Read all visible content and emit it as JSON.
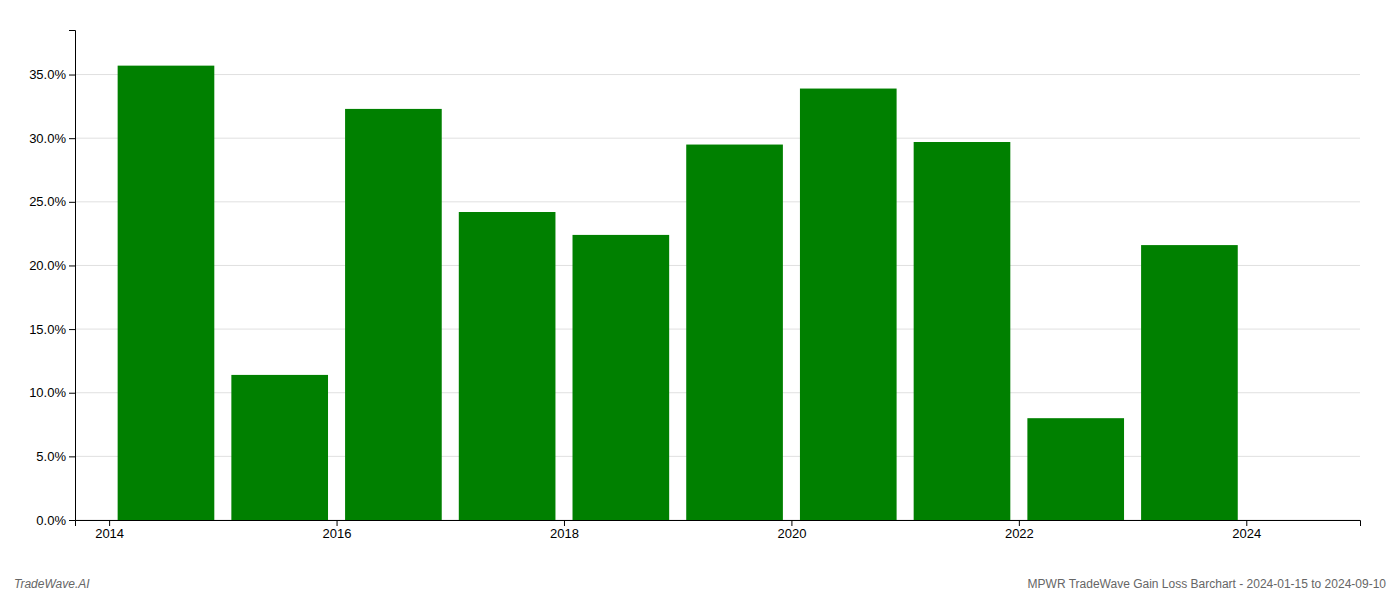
{
  "chart_data": {
    "type": "bar",
    "x": [
      2014,
      2015,
      2016,
      2017,
      2018,
      2019,
      2020,
      2021,
      2022,
      2023
    ],
    "values": [
      0.357,
      0.114,
      0.323,
      0.242,
      0.224,
      0.295,
      0.339,
      0.297,
      0.08,
      0.216
    ],
    "color": "#008000",
    "xlim": [
      2013.2,
      2024.5
    ],
    "xticks": [
      {
        "value": 2013.5,
        "label": "2014"
      },
      {
        "value": 2015.5,
        "label": "2016"
      },
      {
        "value": 2017.5,
        "label": "2018"
      },
      {
        "value": 2019.5,
        "label": "2020"
      },
      {
        "value": 2021.5,
        "label": "2022"
      },
      {
        "value": 2023.5,
        "label": "2024"
      }
    ],
    "ylim": [
      0.0,
      0.385
    ],
    "yticks": [
      {
        "value": 0.0,
        "label": "0.0%"
      },
      {
        "value": 0.05,
        "label": "5.0%"
      },
      {
        "value": 0.1,
        "label": "10.0%"
      },
      {
        "value": 0.15,
        "label": "15.0%"
      },
      {
        "value": 0.2,
        "label": "20.0%"
      },
      {
        "value": 0.25,
        "label": "25.0%"
      },
      {
        "value": 0.3,
        "label": "30.0%"
      },
      {
        "value": 0.35,
        "label": "35.0%"
      }
    ],
    "grid": true,
    "annotations": [
      "TradeWave.AI",
      "MPWR TradeWave Gain Loss Barchart - 2024-01-15 to 2024-09-10"
    ]
  }
}
